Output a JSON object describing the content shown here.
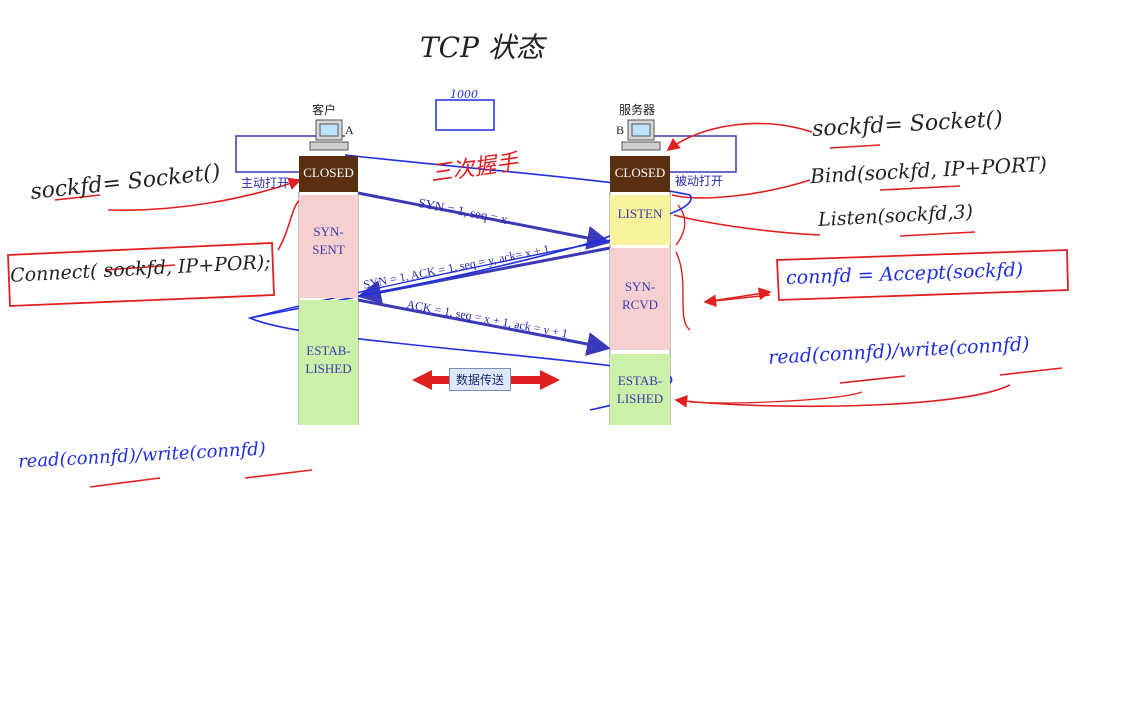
{
  "title": "TCP 状态",
  "note_1000": "1000",
  "annotation_handshake": "三次握手",
  "client": {
    "label": "客户",
    "host_letter": "A",
    "active_open": "主动打开"
  },
  "server": {
    "label": "服务器",
    "host_letter": "B",
    "passive_open": "被动打开"
  },
  "client_states": [
    "CLOSED",
    "SYN-\nSENT",
    "ESTAB-\nLISHED"
  ],
  "server_states": [
    "CLOSED",
    "LISTEN",
    "SYN-\nRCVD",
    "ESTAB-\nLISHED"
  ],
  "messages": [
    "SYN = 1, seq = x",
    "SYN = 1, ACK = 1, seq = y, ack= x + 1",
    "ACK = 1, seq = x + 1, ack = y + 1"
  ],
  "data_transfer": "数据传送",
  "client_code": {
    "socket": "sockfd= Socket()",
    "connect": "Connect( sockfd, IP+POR);",
    "rw": "read(connfd)/write(connfd)"
  },
  "server_code": {
    "socket": "sockfd= Socket()",
    "bind": "Bind(sockfd, IP+PORT)",
    "listen": "Listen(sockfd,3)",
    "accept": "connfd = Accept(sockfd)",
    "rw": "read(connfd)/write(connfd)"
  },
  "colors": {
    "handwriting_blue": "#1f2ee0",
    "handwriting_red": "#e02020",
    "arrow_blue": "#3a3ab8"
  }
}
